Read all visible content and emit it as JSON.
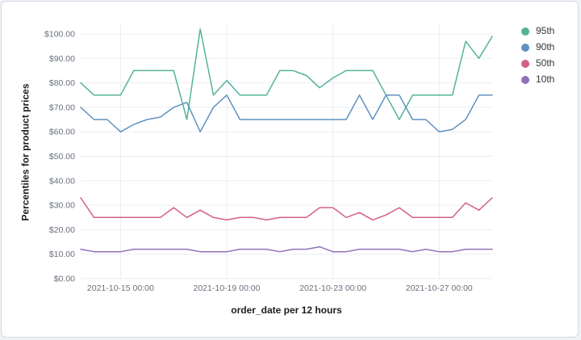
{
  "chart_data": {
    "type": "line",
    "title": "",
    "xlabel": "order_date per 12 hours",
    "ylabel": "Percentiles for product prices",
    "ylim": [
      0,
      100
    ],
    "y_tick_step": 10,
    "y_tick_labels": [
      "$0.00",
      "$10.00",
      "$20.00",
      "$30.00",
      "$40.00",
      "$50.00",
      "$60.00",
      "$70.00",
      "$80.00",
      "$90.00",
      "$100.00"
    ],
    "x_interval": "12 hours",
    "x_tick_indices": [
      3,
      11,
      19,
      27
    ],
    "x_tick_labels": [
      "2021-10-15 00:00",
      "2021-10-19 00:00",
      "2021-10-23 00:00",
      "2021-10-27 00:00"
    ],
    "legend_position": "right",
    "grid": true,
    "series": [
      {
        "name": "95th",
        "color": "#54B399",
        "values": [
          80,
          75,
          75,
          75,
          85,
          85,
          85,
          85,
          65,
          102,
          75,
          81,
          75,
          75,
          75,
          85,
          85,
          83,
          78,
          82,
          85,
          85,
          85,
          75,
          65,
          75,
          75,
          75,
          75,
          97,
          90,
          99
        ]
      },
      {
        "name": "90th",
        "color": "#6092C0",
        "values": [
          70,
          65,
          65,
          60,
          63,
          65,
          66,
          70,
          72,
          60,
          70,
          75,
          65,
          65,
          65,
          65,
          65,
          65,
          65,
          65,
          65,
          75,
          65,
          75,
          75,
          65,
          65,
          60,
          61,
          65,
          75,
          75
        ]
      },
      {
        "name": "50th",
        "color": "#D36086",
        "values": [
          33,
          25,
          25,
          25,
          25,
          25,
          25,
          29,
          25,
          28,
          25,
          24,
          25,
          25,
          24,
          25,
          25,
          25,
          29,
          29,
          25,
          27,
          24,
          26,
          29,
          25,
          25,
          25,
          25,
          31,
          28,
          33
        ]
      },
      {
        "name": "10th",
        "color": "#9170B8",
        "values": [
          12,
          11,
          11,
          11,
          12,
          12,
          12,
          12,
          12,
          11,
          11,
          11,
          12,
          12,
          12,
          11,
          12,
          12,
          13,
          11,
          11,
          12,
          12,
          12,
          12,
          11,
          12,
          11,
          11,
          12,
          12,
          12
        ]
      }
    ]
  }
}
